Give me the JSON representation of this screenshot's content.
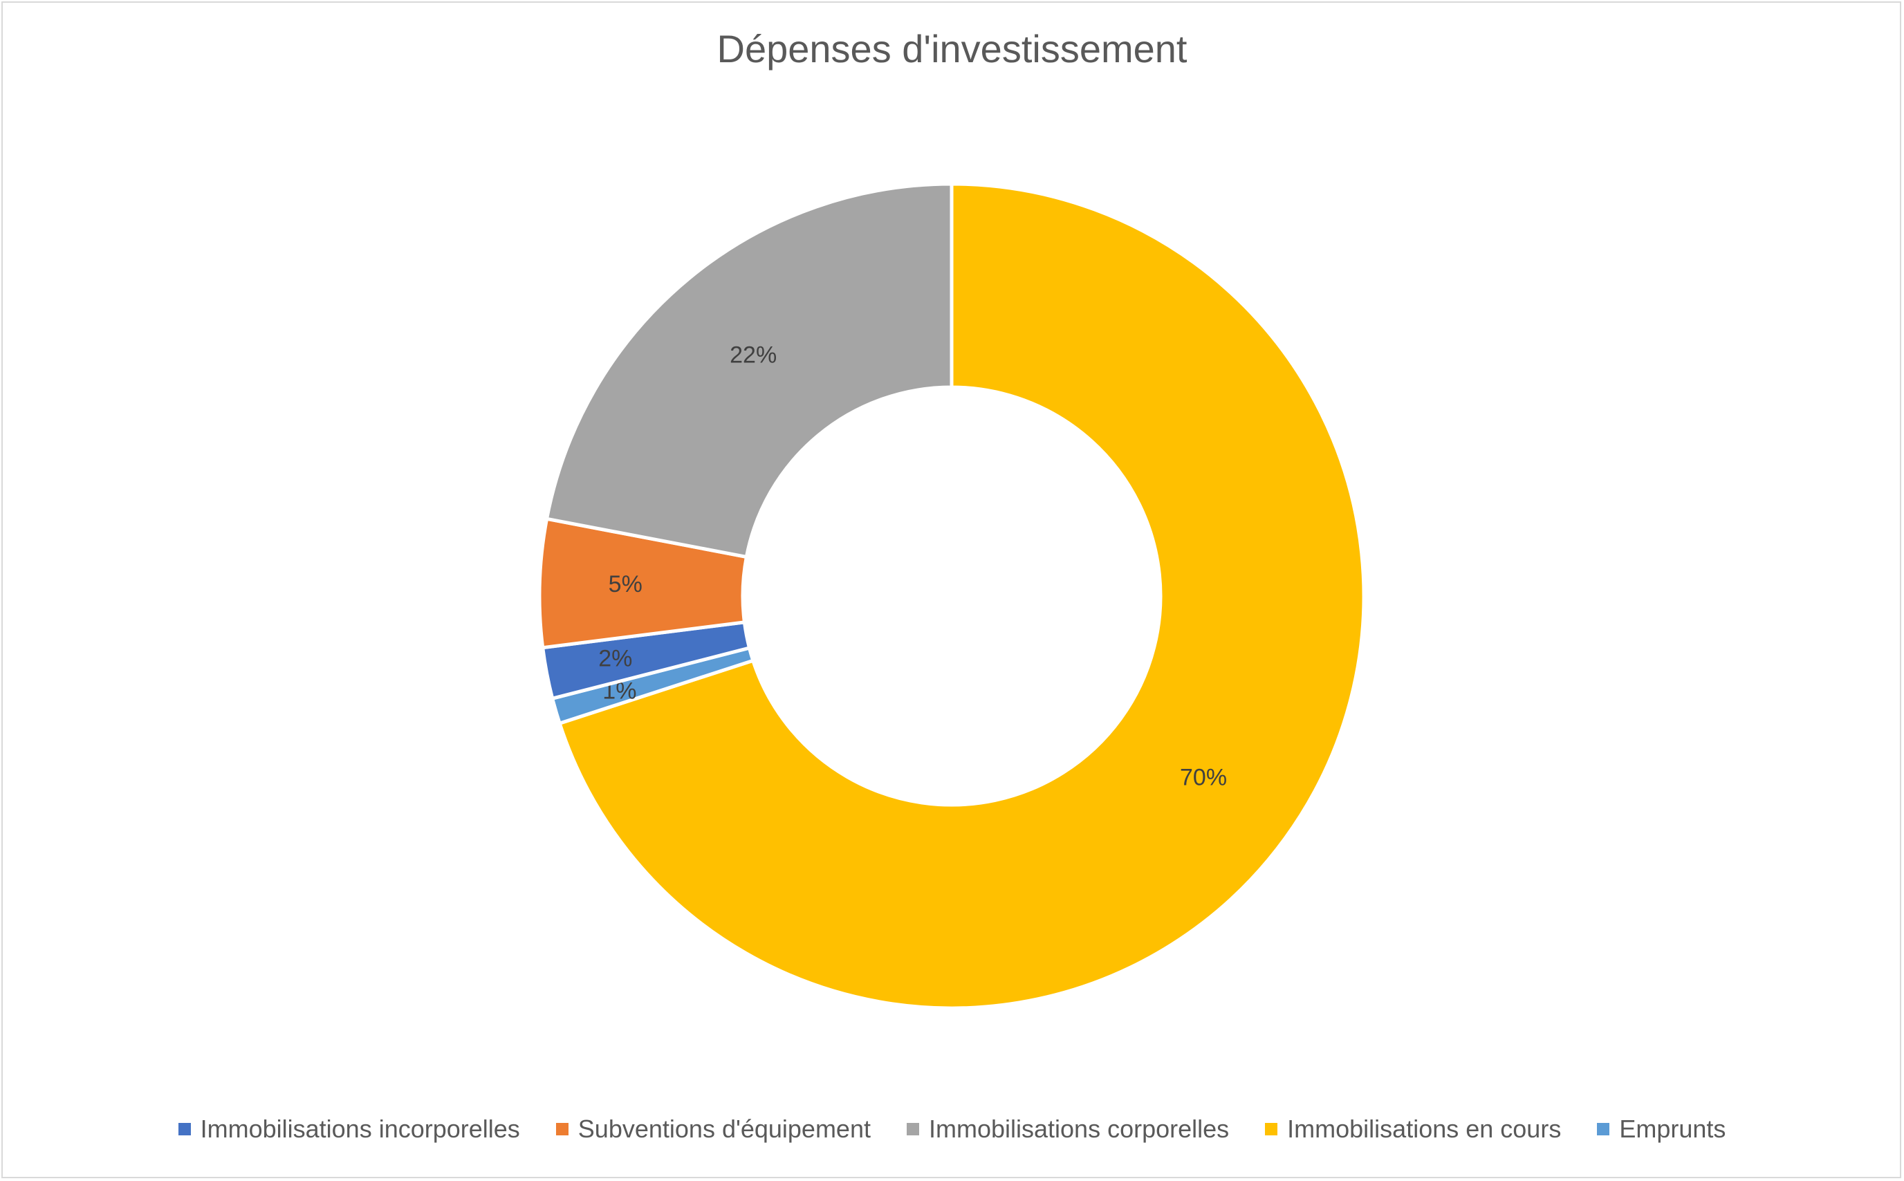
{
  "chart_data": {
    "type": "pie",
    "variant": "donut",
    "title": "Dépenses d'investissement",
    "legend_position": "bottom",
    "categories": [
      "Immobilisations incorporelles",
      "Subventions d'équipement",
      "Immobilisations corporelles",
      "Immobilisations en cours",
      "Emprunts"
    ],
    "values": [
      2,
      5,
      22,
      70,
      1
    ],
    "data_labels": [
      "2%",
      "5%",
      "22%",
      "70%",
      "1%"
    ],
    "colors": [
      "#4472C4",
      "#ED7D31",
      "#A5A5A5",
      "#FFC000",
      "#5B9BD5"
    ]
  }
}
